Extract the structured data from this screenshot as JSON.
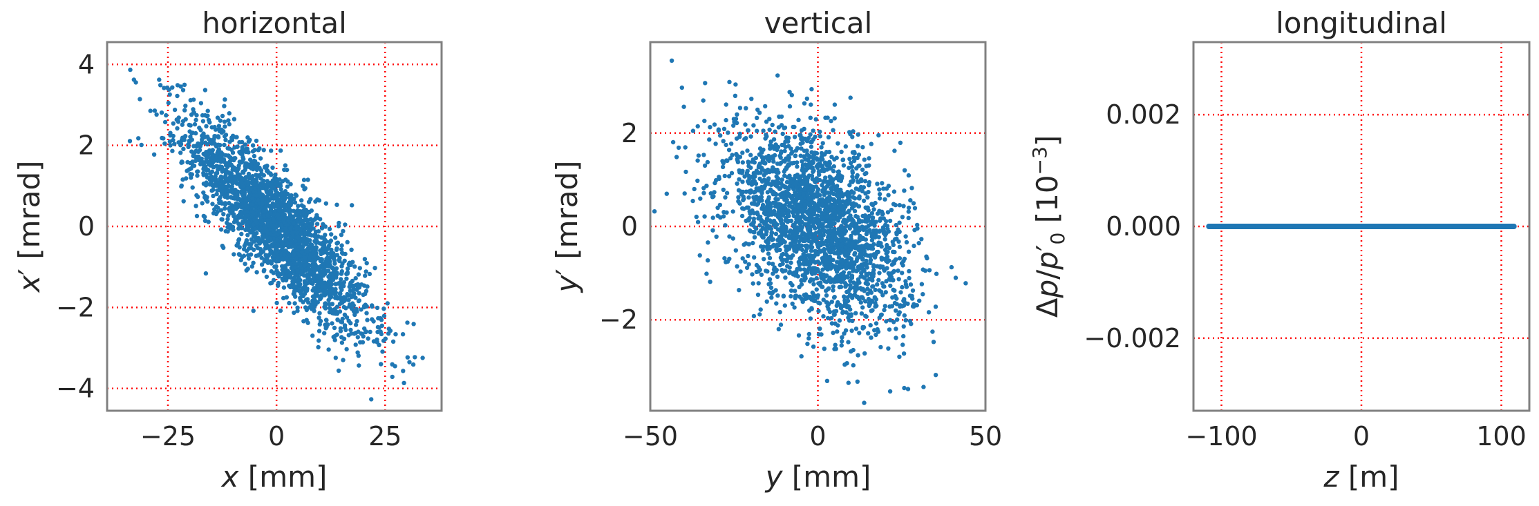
{
  "colors": {
    "points": "#1f77b4",
    "grid": "#ff0000",
    "frame": "#808080",
    "text": "#262626"
  },
  "chart_data": [
    {
      "type": "scatter",
      "title": "horizontal",
      "xlabel": "x [mm]",
      "ylabel": "x′ [mrad]",
      "xlim": [
        -39,
        38
      ],
      "ylim": [
        -4.55,
        4.55
      ],
      "xticks": [
        -25,
        0,
        25
      ],
      "xtick_labels": [
        "−25",
        "0",
        "25"
      ],
      "yticks": [
        -4,
        -2,
        0,
        2,
        4
      ],
      "ytick_labels": [
        "−4",
        "−2",
        "0",
        "2",
        "4"
      ],
      "grid": true,
      "distribution": {
        "n": 2500,
        "mean": [
          0,
          0
        ],
        "std": [
          10.5,
          1.3
        ],
        "corr": -0.85
      }
    },
    {
      "type": "scatter",
      "title": "vertical",
      "xlabel": "y [mm]",
      "ylabel": "y′ [mrad]",
      "xlim": [
        -50,
        50
      ],
      "ylim": [
        -3.95,
        3.95
      ],
      "xticks": [
        -50,
        0,
        50
      ],
      "xtick_labels": [
        "−50",
        "0",
        "50"
      ],
      "yticks": [
        -2,
        0,
        2
      ],
      "ytick_labels": [
        "−2",
        "0",
        "2"
      ],
      "grid": true,
      "distribution": {
        "n": 2500,
        "mean": [
          0,
          0
        ],
        "std": [
          13.5,
          1.05
        ],
        "corr": -0.45
      }
    },
    {
      "type": "scatter",
      "title": "longitudinal",
      "xlabel": "z [m]",
      "ylabel": "Δp/p′₀ [10⁻³]",
      "xlim": [
        -120,
        120
      ],
      "ylim": [
        -0.0033,
        0.0033
      ],
      "xticks": [
        -100,
        0,
        100
      ],
      "xtick_labels": [
        "−100",
        "0",
        "100"
      ],
      "yticks": [
        -0.002,
        0,
        0.002
      ],
      "ytick_labels": [
        "−0.002",
        "0.000",
        "0.002"
      ],
      "grid": true,
      "distribution": {
        "n": 500,
        "x_range": [
          -109,
          109
        ],
        "y_value": 0
      }
    }
  ]
}
